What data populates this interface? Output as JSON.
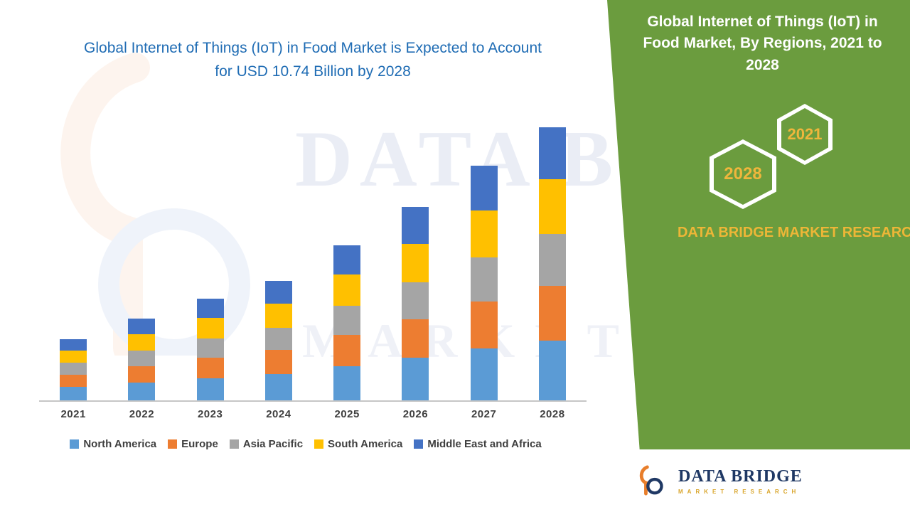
{
  "left": {
    "title": "Global Internet of Things (IoT) in Food Market is Expected to Account for USD 10.74 Billion by 2028"
  },
  "right_panel": {
    "title": "Global Internet of Things (IoT) in Food Market, By Regions, 2021 to 2028",
    "hexagons": [
      {
        "label": "2028"
      },
      {
        "label": "2021"
      }
    ],
    "brand_caption": "DATA BRIDGE MARKET RESEARCH",
    "background_color": "#6B9C3E",
    "accent_color": "#EDB637"
  },
  "footer_logo": {
    "name": "DATA BRIDGE",
    "tagline": "MARKET RESEARCH"
  },
  "watermark": {
    "line1": "DATA BRIDGE",
    "line2": "MARKET RESEARCH"
  },
  "chart_data": {
    "type": "bar",
    "stacked": true,
    "title": "Global Internet of Things (IoT) in Food Market is Expected to Account for USD 10.74 Billion by 2028",
    "unit": "USD Billion",
    "categories": [
      "2021",
      "2022",
      "2023",
      "2024",
      "2025",
      "2026",
      "2027",
      "2028"
    ],
    "series": [
      {
        "name": "North America",
        "color": "#5B9BD5",
        "values": [
          0.53,
          0.71,
          0.88,
          1.03,
          1.34,
          1.67,
          2.03,
          2.36
        ]
      },
      {
        "name": "Europe",
        "color": "#ED7D31",
        "values": [
          0.48,
          0.64,
          0.8,
          0.94,
          1.22,
          1.52,
          1.84,
          2.15
        ]
      },
      {
        "name": "Asia Pacific",
        "color": "#A5A5A5",
        "values": [
          0.46,
          0.61,
          0.76,
          0.89,
          1.16,
          1.44,
          1.75,
          2.04
        ]
      },
      {
        "name": "South America",
        "color": "#FFC000",
        "values": [
          0.48,
          0.64,
          0.8,
          0.94,
          1.22,
          1.52,
          1.84,
          2.15
        ]
      },
      {
        "name": "Middle East and Africa",
        "color": "#4472C4",
        "values": [
          0.46,
          0.61,
          0.76,
          0.89,
          1.16,
          1.44,
          1.75,
          2.04
        ]
      }
    ],
    "ylim": [
      0,
      11
    ],
    "gridlines": false,
    "legend_position": "bottom",
    "y_axis_visible": false,
    "x_axis_visible": true
  }
}
